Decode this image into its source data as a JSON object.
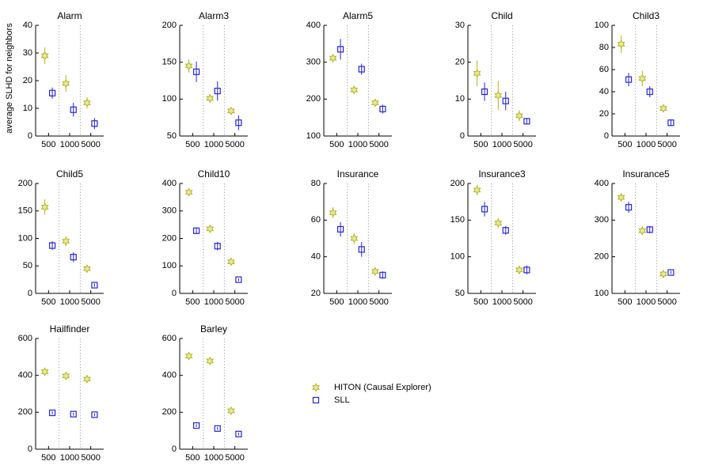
{
  "figure": {
    "ylabel": "average SLHD for neighbors",
    "legend": {
      "placement": "bottom-right",
      "entries": [
        {
          "name": "HITON (Causal Explorer)",
          "marker": "hexagram",
          "color": "#b5b520"
        },
        {
          "name": "SLL",
          "marker": "square",
          "color": "#2323e0"
        }
      ]
    }
  },
  "colors": {
    "hiton": "#b5b520",
    "sll": "#2323e0",
    "separator": "#888888"
  },
  "chart_data": [
    {
      "type": "scatter",
      "title": "Alarm",
      "categories": [
        "500",
        "1000",
        "5000"
      ],
      "ylim": [
        0,
        40
      ],
      "yticks": [
        0,
        10,
        20,
        30,
        40
      ],
      "series": [
        {
          "name": "HITON (Causal Explorer)",
          "values": [
            29,
            19,
            12
          ],
          "err": [
            3,
            3,
            2
          ]
        },
        {
          "name": "SLL",
          "values": [
            15.5,
            9.5,
            4.5
          ],
          "err": [
            2,
            2.5,
            2
          ]
        }
      ]
    },
    {
      "type": "scatter",
      "title": "Alarm3",
      "categories": [
        "500",
        "1000",
        "5000"
      ],
      "ylim": [
        50,
        200
      ],
      "yticks": [
        50,
        100,
        150,
        200
      ],
      "series": [
        {
          "name": "HITON (Causal Explorer)",
          "values": [
            145,
            101,
            84
          ],
          "err": [
            9,
            6,
            4
          ]
        },
        {
          "name": "SLL",
          "values": [
            137,
            111,
            68
          ],
          "err": [
            14,
            13,
            10
          ]
        }
      ]
    },
    {
      "type": "scatter",
      "title": "Alarm5",
      "categories": [
        "500",
        "1000",
        "5000"
      ],
      "ylim": [
        100,
        400
      ],
      "yticks": [
        100,
        200,
        300,
        400
      ],
      "series": [
        {
          "name": "HITON (Causal Explorer)",
          "values": [
            311,
            225,
            190
          ],
          "err": [
            10,
            8,
            6
          ]
        },
        {
          "name": "SLL",
          "values": [
            335,
            281,
            173
          ],
          "err": [
            28,
            15,
            12
          ]
        }
      ]
    },
    {
      "type": "scatter",
      "title": "Child",
      "categories": [
        "500",
        "1000",
        "5000"
      ],
      "ylim": [
        0,
        30
      ],
      "yticks": [
        0,
        10,
        20,
        30
      ],
      "series": [
        {
          "name": "HITON (Causal Explorer)",
          "values": [
            17,
            11,
            5.5
          ],
          "err": [
            3.5,
            4,
            1.5
          ]
        },
        {
          "name": "SLL",
          "values": [
            12,
            9.5,
            4
          ],
          "err": [
            2.5,
            2.5,
            0.8
          ]
        }
      ]
    },
    {
      "type": "scatter",
      "title": "Child3",
      "categories": [
        "500",
        "1000",
        "5000"
      ],
      "ylim": [
        0,
        100
      ],
      "yticks": [
        0,
        20,
        40,
        60,
        80,
        100
      ],
      "series": [
        {
          "name": "HITON (Causal Explorer)",
          "values": [
            83,
            52,
            25
          ],
          "err": [
            8,
            7,
            3
          ]
        },
        {
          "name": "SLL",
          "values": [
            51,
            40,
            12
          ],
          "err": [
            6,
            5,
            3
          ]
        }
      ]
    },
    {
      "type": "scatter",
      "title": "Child5",
      "categories": [
        "500",
        "1000",
        "5000"
      ],
      "ylim": [
        0,
        200
      ],
      "yticks": [
        0,
        50,
        100,
        150,
        200
      ],
      "series": [
        {
          "name": "HITON (Causal Explorer)",
          "values": [
            157,
            95,
            45
          ],
          "err": [
            14,
            9,
            4
          ]
        },
        {
          "name": "SLL",
          "values": [
            87,
            66,
            15
          ],
          "err": [
            8,
            9,
            3
          ]
        }
      ]
    },
    {
      "type": "scatter",
      "title": "Child10",
      "categories": [
        "500",
        "1000",
        "5000"
      ],
      "ylim": [
        0,
        400
      ],
      "yticks": [
        0,
        100,
        200,
        300,
        400
      ],
      "series": [
        {
          "name": "HITON (Causal Explorer)",
          "values": [
            368,
            235,
            115
          ],
          "err": [
            12,
            12,
            8
          ]
        },
        {
          "name": "SLL",
          "values": [
            228,
            172,
            50
          ],
          "err": [
            10,
            15,
            5
          ]
        }
      ]
    },
    {
      "type": "scatter",
      "title": "Insurance",
      "categories": [
        "500",
        "1000",
        "5000"
      ],
      "ylim": [
        20,
        80
      ],
      "yticks": [
        20,
        40,
        60,
        80
      ],
      "series": [
        {
          "name": "HITON (Causal Explorer)",
          "values": [
            64,
            50,
            32
          ],
          "err": [
            3,
            3,
            2
          ]
        },
        {
          "name": "SLL",
          "values": [
            55,
            44,
            30
          ],
          "err": [
            4,
            4,
            2
          ]
        }
      ]
    },
    {
      "type": "scatter",
      "title": "Insurance3",
      "categories": [
        "500",
        "1000",
        "5000"
      ],
      "ylim": [
        50,
        200
      ],
      "yticks": [
        50,
        100,
        150,
        200
      ],
      "series": [
        {
          "name": "HITON (Causal Explorer)",
          "values": [
            191,
            146,
            82
          ],
          "err": [
            7,
            7,
            6
          ]
        },
        {
          "name": "SLL",
          "values": [
            165,
            136,
            82
          ],
          "err": [
            10,
            6,
            6
          ]
        }
      ]
    },
    {
      "type": "scatter",
      "title": "Insurance5",
      "categories": [
        "500",
        "1000",
        "5000"
      ],
      "ylim": [
        100,
        400
      ],
      "yticks": [
        100,
        200,
        300,
        400
      ],
      "series": [
        {
          "name": "HITON (Causal Explorer)",
          "values": [
            362,
            271,
            153
          ],
          "err": [
            10,
            12,
            5
          ]
        },
        {
          "name": "SLL",
          "values": [
            335,
            274,
            157
          ],
          "err": [
            15,
            10,
            4
          ]
        }
      ]
    },
    {
      "type": "scatter",
      "title": "Hailfinder",
      "categories": [
        "500",
        "1000",
        "5000"
      ],
      "ylim": [
        0,
        600
      ],
      "yticks": [
        0,
        200,
        400,
        600
      ],
      "series": [
        {
          "name": "HITON (Causal Explorer)",
          "values": [
            420,
            397,
            380
          ],
          "err": [
            10,
            10,
            10
          ]
        },
        {
          "name": "SLL",
          "values": [
            197,
            190,
            187
          ],
          "err": [
            8,
            8,
            8
          ]
        }
      ]
    },
    {
      "type": "scatter",
      "title": "Barley",
      "categories": [
        "500",
        "1000",
        "5000"
      ],
      "ylim": [
        0,
        600
      ],
      "yticks": [
        0,
        200,
        400,
        600
      ],
      "series": [
        {
          "name": "HITON (Causal Explorer)",
          "values": [
            505,
            478,
            208
          ],
          "err": [
            18,
            15,
            10
          ]
        },
        {
          "name": "SLL",
          "values": [
            128,
            112,
            82
          ],
          "err": [
            8,
            8,
            8
          ]
        }
      ]
    }
  ]
}
